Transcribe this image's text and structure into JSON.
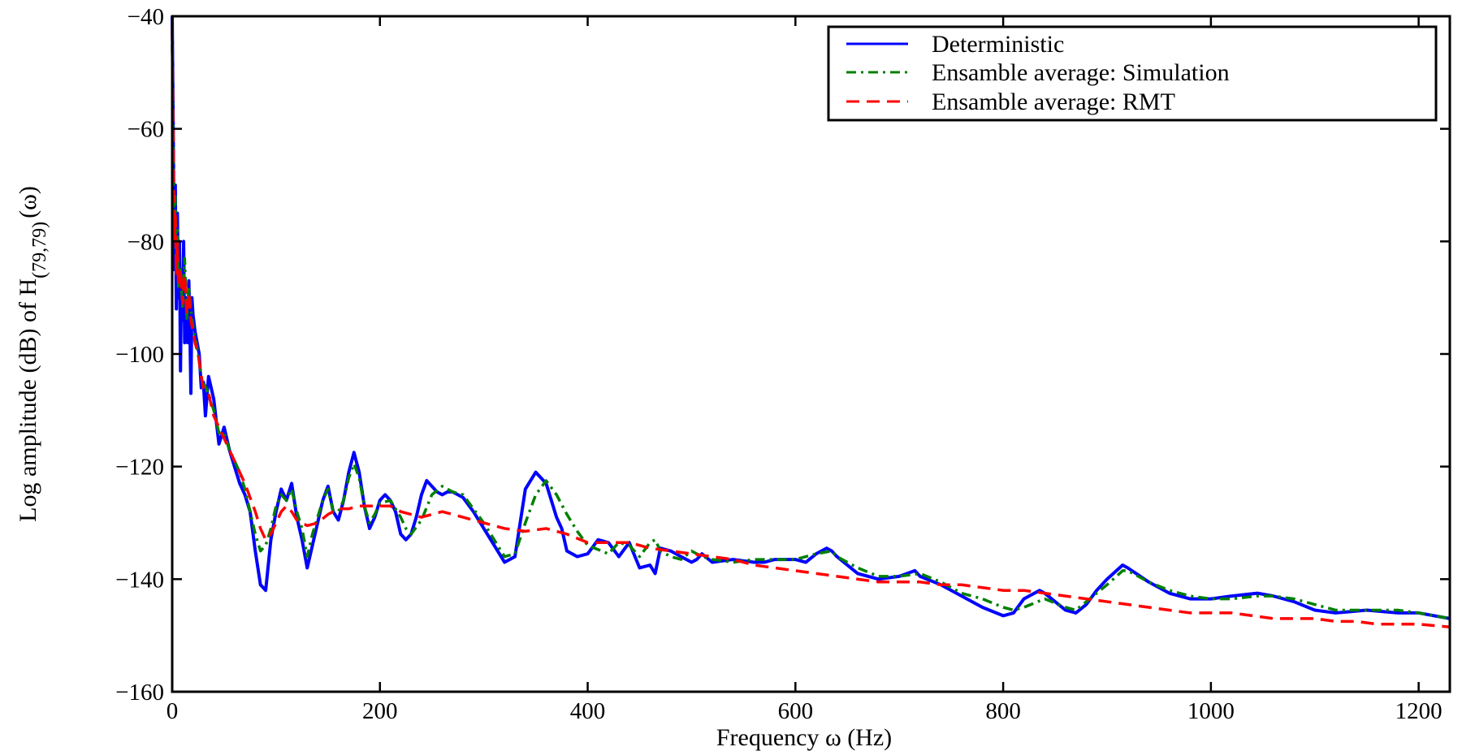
{
  "chart_data": {
    "type": "line",
    "xlabel": "Frequency ω (Hz)",
    "ylabel_prefix": "Log amplitude (dB) of H",
    "ylabel_subscript": "(79,79)",
    "ylabel_suffix": "(ω)",
    "xlim": [
      0,
      1230
    ],
    "ylim": [
      -160,
      -40
    ],
    "x_ticks": [
      0,
      200,
      400,
      600,
      800,
      1000,
      1200
    ],
    "y_ticks": [
      -40,
      -60,
      -80,
      -100,
      -120,
      -140,
      -160
    ],
    "x_tick_labels": [
      "0",
      "200",
      "400",
      "600",
      "800",
      "1000",
      "1200"
    ],
    "y_tick_labels": [
      "−40",
      "−60",
      "−80",
      "−100",
      "−120",
      "−140",
      "−160"
    ],
    "grid": false,
    "legend_position": "top-right",
    "series": [
      {
        "name": "Deterministic",
        "color": "#0000ff",
        "style": "solid",
        "x": [
          0,
          1,
          2,
          3,
          4,
          5,
          6,
          7,
          8,
          9,
          10,
          11,
          12,
          13,
          14,
          15,
          16,
          17,
          18,
          19,
          20,
          22,
          24,
          26,
          28,
          30,
          32,
          35,
          40,
          45,
          50,
          55,
          60,
          65,
          70,
          75,
          80,
          85,
          90,
          95,
          100,
          105,
          110,
          115,
          120,
          125,
          130,
          135,
          140,
          145,
          150,
          155,
          160,
          165,
          170,
          175,
          180,
          185,
          190,
          195,
          200,
          205,
          210,
          215,
          220,
          225,
          230,
          235,
          240,
          245,
          250,
          255,
          260,
          265,
          270,
          280,
          290,
          300,
          310,
          320,
          330,
          335,
          340,
          350,
          360,
          365,
          370,
          375,
          380,
          390,
          400,
          410,
          420,
          430,
          440,
          450,
          460,
          465,
          470,
          480,
          490,
          500,
          505,
          510,
          520,
          540,
          560,
          570,
          580,
          600,
          610,
          620,
          630,
          635,
          640,
          660,
          680,
          700,
          715,
          720,
          740,
          760,
          780,
          800,
          810,
          820,
          835,
          840,
          860,
          870,
          880,
          890,
          900,
          915,
          920,
          940,
          960,
          980,
          1000,
          1020,
          1045,
          1060,
          1080,
          1100,
          1120,
          1150,
          1180,
          1200,
          1230
        ],
        "values": [
          -40,
          -60,
          -85,
          -70,
          -92,
          -75,
          -90,
          -80,
          -103,
          -85,
          -94,
          -80,
          -98,
          -90,
          -94,
          -98,
          -87,
          -95,
          -107,
          -90,
          -93,
          -96,
          -98,
          -100,
          -106,
          -105,
          -111,
          -104,
          -108,
          -116,
          -113,
          -117,
          -120,
          -123,
          -125,
          -128,
          -135,
          -141,
          -142,
          -133,
          -128,
          -124,
          -126,
          -123,
          -129,
          -133,
          -138,
          -134,
          -130,
          -126,
          -123.5,
          -128,
          -129.5,
          -126,
          -121,
          -117.5,
          -121,
          -127,
          -131,
          -129,
          -126,
          -125,
          -126,
          -128,
          -132,
          -133,
          -132,
          -129,
          -125,
          -122.5,
          -123.5,
          -124.5,
          -125,
          -124.5,
          -124.5,
          -125.5,
          -128,
          -131,
          -134,
          -137,
          -136,
          -130,
          -124,
          -121,
          -123,
          -126,
          -129,
          -131,
          -135,
          -136,
          -135.5,
          -133,
          -133.5,
          -136,
          -133.5,
          -138,
          -137.5,
          -139,
          -134.5,
          -135,
          -136,
          -137,
          -136.5,
          -135.5,
          -137,
          -136.5,
          -137,
          -137,
          -136.5,
          -136.5,
          -137,
          -135.5,
          -134.5,
          -135,
          -136,
          -139,
          -140,
          -139.5,
          -138.5,
          -139.5,
          -141,
          -143,
          -145,
          -146.5,
          -146,
          -143.5,
          -142,
          -142.5,
          -145.5,
          -146,
          -144.5,
          -142,
          -140,
          -137.5,
          -138,
          -140.5,
          -142.5,
          -143.5,
          -143.5,
          -143,
          -142.5,
          -143,
          -144,
          -145.5,
          -146,
          -145.5,
          -146,
          -146,
          -147
        ]
      },
      {
        "name": "Ensamble average: Simulation",
        "color": "#008000",
        "style": "dashdot",
        "x": [
          0,
          1,
          2,
          3,
          4,
          5,
          6,
          8,
          10,
          12,
          14,
          16,
          18,
          20,
          22,
          25,
          28,
          30,
          35,
          40,
          45,
          50,
          55,
          60,
          65,
          70,
          75,
          80,
          85,
          90,
          95,
          100,
          105,
          110,
          115,
          120,
          125,
          130,
          135,
          140,
          145,
          150,
          155,
          160,
          165,
          170,
          175,
          180,
          185,
          190,
          195,
          200,
          210,
          220,
          225,
          230,
          240,
          250,
          260,
          265,
          270,
          280,
          290,
          300,
          310,
          320,
          330,
          340,
          350,
          360,
          370,
          380,
          390,
          400,
          420,
          430,
          440,
          450,
          460,
          465,
          470,
          480,
          490,
          500,
          510,
          520,
          540,
          560,
          580,
          600,
          620,
          635,
          640,
          660,
          680,
          700,
          720,
          740,
          760,
          780,
          800,
          810,
          820,
          840,
          860,
          870,
          880,
          900,
          915,
          920,
          940,
          960,
          980,
          1000,
          1020,
          1045,
          1060,
          1080,
          1100,
          1120,
          1150,
          1180,
          1200,
          1230
        ],
        "values": [
          -45,
          -62,
          -80,
          -72,
          -86,
          -78,
          -88,
          -85,
          -92,
          -83,
          -94,
          -88,
          -92,
          -95,
          -97,
          -100,
          -104,
          -105,
          -107,
          -110,
          -114,
          -114,
          -117,
          -119,
          -121,
          -124,
          -128,
          -132,
          -135,
          -134,
          -131,
          -127,
          -125,
          -126,
          -124,
          -128,
          -131,
          -136,
          -132,
          -129,
          -126,
          -124,
          -128,
          -128,
          -126,
          -122,
          -119.5,
          -122,
          -127,
          -130,
          -128.5,
          -126.5,
          -126,
          -129,
          -131,
          -132,
          -129.5,
          -125,
          -123.5,
          -124,
          -124.5,
          -125,
          -127.5,
          -130,
          -133,
          -136,
          -135.5,
          -130,
          -125,
          -122.5,
          -125,
          -128.5,
          -131.5,
          -134,
          -135.5,
          -133.5,
          -134,
          -136,
          -133.5,
          -133,
          -135,
          -136,
          -136.5,
          -135,
          -136,
          -136.5,
          -137,
          -136.5,
          -136.5,
          -136.5,
          -135.5,
          -135,
          -136,
          -138,
          -139.5,
          -139.5,
          -139,
          -140.5,
          -142.5,
          -143.5,
          -145,
          -145.5,
          -145,
          -143.5,
          -145,
          -145.5,
          -144,
          -141,
          -138.5,
          -138.5,
          -140.5,
          -142,
          -143,
          -143.5,
          -143.5,
          -143,
          -143,
          -143.5,
          -144.5,
          -145.5,
          -145.5,
          -145.5,
          -146,
          -147
        ]
      },
      {
        "name": "Ensamble average: RMT",
        "color": "#ff0000",
        "style": "dashed",
        "x": [
          0,
          1,
          2,
          3,
          4,
          5,
          6,
          8,
          10,
          12,
          14,
          16,
          18,
          20,
          22,
          25,
          28,
          30,
          35,
          40,
          45,
          50,
          55,
          60,
          70,
          80,
          85,
          90,
          95,
          100,
          105,
          110,
          115,
          120,
          130,
          140,
          150,
          160,
          170,
          180,
          190,
          200,
          210,
          220,
          230,
          240,
          250,
          260,
          270,
          280,
          300,
          320,
          340,
          360,
          380,
          400,
          420,
          440,
          460,
          480,
          500,
          520,
          540,
          560,
          580,
          600,
          620,
          640,
          660,
          680,
          700,
          720,
          740,
          760,
          780,
          800,
          820,
          840,
          860,
          880,
          900,
          920,
          940,
          960,
          980,
          1000,
          1020,
          1040,
          1060,
          1080,
          1100,
          1120,
          1140,
          1160,
          1180,
          1200,
          1230
        ],
        "values": [
          -42,
          -65,
          -80,
          -75,
          -86,
          -80,
          -88,
          -85,
          -91,
          -86,
          -93,
          -89,
          -94,
          -96,
          -98,
          -100,
          -104,
          -106,
          -107,
          -111,
          -113,
          -115,
          -117,
          -119,
          -123,
          -128,
          -131,
          -133,
          -132,
          -130,
          -128,
          -127,
          -128,
          -129.5,
          -130.5,
          -130,
          -128.5,
          -127.5,
          -127.5,
          -127,
          -127,
          -127,
          -127,
          -128,
          -128.5,
          -129,
          -128.5,
          -128,
          -128.5,
          -129,
          -130,
          -131,
          -131.5,
          -131,
          -132,
          -133.5,
          -133.5,
          -133.5,
          -134.5,
          -135,
          -135.5,
          -136,
          -136.5,
          -137.5,
          -138,
          -138.5,
          -139,
          -139.5,
          -140,
          -140.5,
          -140.5,
          -140.5,
          -141,
          -141,
          -141.5,
          -142,
          -142,
          -142.5,
          -143,
          -143.5,
          -144,
          -144.5,
          -145,
          -145.5,
          -146,
          -146,
          -146,
          -146.5,
          -147,
          -147,
          -147,
          -147.5,
          -147.5,
          -148,
          -148,
          -148,
          -148.5
        ]
      }
    ]
  }
}
